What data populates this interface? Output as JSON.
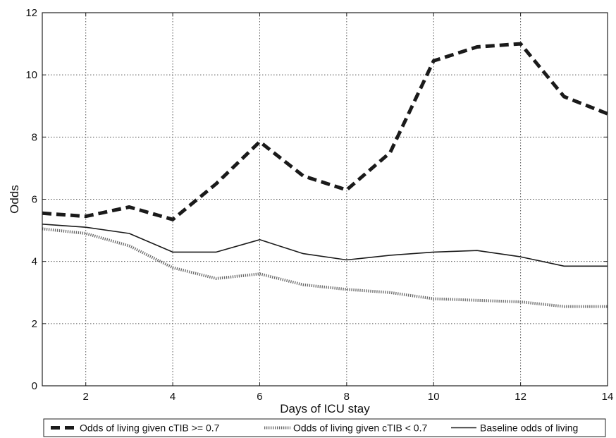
{
  "chart_data": {
    "type": "line",
    "title": "",
    "xlabel": "Days of ICU stay",
    "ylabel": "Odds",
    "xlim": [
      1,
      14
    ],
    "ylim": [
      0,
      12
    ],
    "xticks": [
      2,
      4,
      6,
      8,
      10,
      12,
      14
    ],
    "yticks": [
      0,
      2,
      4,
      6,
      8,
      10,
      12
    ],
    "grid": true,
    "legend_position": "bottom",
    "x": [
      1,
      2,
      3,
      4,
      5,
      6,
      7,
      8,
      9,
      10,
      11,
      12,
      13,
      14
    ],
    "series": [
      {
        "name": "Odds of living given cTIB >= 0.7",
        "style": "dashed",
        "color": "#1a1a1a",
        "values": [
          5.55,
          5.45,
          5.75,
          5.35,
          6.5,
          7.85,
          6.75,
          6.3,
          7.5,
          10.45,
          10.9,
          11.0,
          9.3,
          8.75
        ]
      },
      {
        "name": "Odds of living given cTIB < 0.7",
        "style": "dotted",
        "color": "#666666",
        "values": [
          5.05,
          4.9,
          4.5,
          3.8,
          3.45,
          3.6,
          3.25,
          3.1,
          3.0,
          2.8,
          2.75,
          2.7,
          2.55,
          2.55
        ]
      },
      {
        "name": "Baseline odds of living",
        "style": "solid",
        "color": "#1a1a1a",
        "values": [
          5.2,
          5.1,
          4.9,
          4.3,
          4.3,
          4.7,
          4.25,
          4.05,
          4.2,
          4.3,
          4.35,
          4.15,
          3.85,
          3.85
        ]
      }
    ]
  }
}
